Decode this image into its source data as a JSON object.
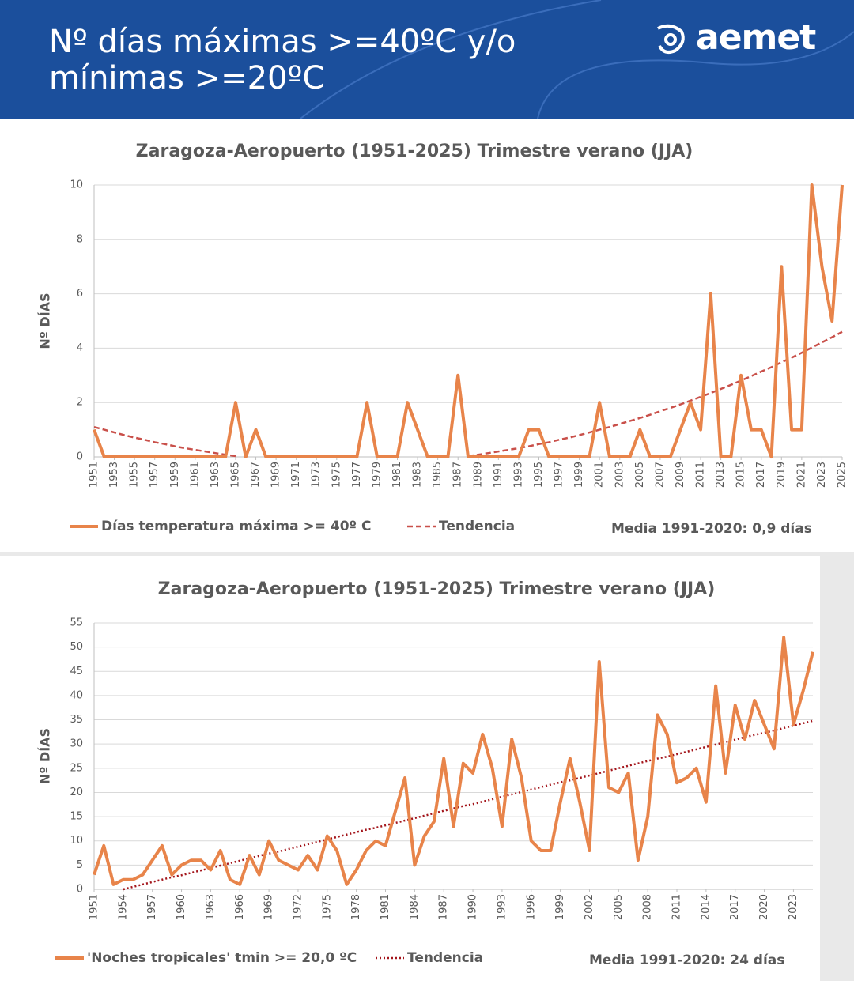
{
  "header": {
    "title": "Nº días máximas >=40ºC y/o mínimas >=20ºC",
    "logo": "aemet"
  },
  "chart_data": [
    {
      "type": "line",
      "title": "Zaragoza-Aeropuerto (1951-2025) Trimestre verano (JJA)",
      "y_label": "Nº DÍAS",
      "x": [
        1951,
        1952,
        1953,
        1954,
        1955,
        1956,
        1957,
        1958,
        1959,
        1960,
        1961,
        1962,
        1963,
        1964,
        1965,
        1966,
        1967,
        1968,
        1969,
        1970,
        1971,
        1972,
        1973,
        1974,
        1975,
        1976,
        1977,
        1978,
        1979,
        1980,
        1981,
        1982,
        1983,
        1984,
        1985,
        1986,
        1987,
        1988,
        1989,
        1990,
        1991,
        1992,
        1993,
        1994,
        1995,
        1996,
        1997,
        1998,
        1999,
        2000,
        2001,
        2002,
        2003,
        2004,
        2005,
        2006,
        2007,
        2008,
        2009,
        2010,
        2011,
        2012,
        2013,
        2014,
        2015,
        2016,
        2017,
        2018,
        2019,
        2020,
        2021,
        2022,
        2023,
        2024,
        2025
      ],
      "series": [
        {
          "name": "Días temperatura máxima >= 40º C",
          "color": "#e8844a",
          "style": "solid",
          "values": [
            1,
            0,
            0,
            0,
            0,
            0,
            0,
            0,
            0,
            0,
            0,
            0,
            0,
            0,
            2,
            0,
            1,
            0,
            0,
            0,
            0,
            0,
            0,
            0,
            0,
            0,
            0,
            2,
            0,
            0,
            0,
            2,
            1,
            0,
            0,
            0,
            3,
            0,
            0,
            0,
            0,
            0,
            0,
            1,
            1,
            0,
            0,
            0,
            0,
            0,
            2,
            0,
            0,
            0,
            1,
            0,
            0,
            0,
            1,
            2,
            1,
            6,
            0,
            0,
            3,
            1,
            1,
            0,
            7,
            1,
            1,
            10,
            7,
            5,
            10
          ]
        },
        {
          "name": "Tendencia",
          "color": "#c9504a",
          "style": "dashed",
          "values": [
            1.1,
            1.0,
            0.9,
            0.8,
            0.71,
            0.63,
            0.54,
            0.47,
            0.39,
            0.32,
            0.26,
            0.2,
            0.14,
            0.08,
            0.03,
            null,
            null,
            null,
            null,
            null,
            null,
            null,
            null,
            null,
            null,
            null,
            null,
            null,
            null,
            null,
            null,
            null,
            null,
            null,
            null,
            null,
            null,
            0.03,
            0.08,
            0.14,
            0.2,
            0.26,
            0.32,
            0.39,
            0.47,
            0.54,
            0.63,
            0.71,
            0.8,
            0.9,
            1.0,
            1.1,
            1.21,
            1.32,
            1.43,
            1.55,
            1.68,
            1.8,
            1.93,
            2.07,
            2.21,
            2.35,
            2.5,
            2.65,
            2.81,
            2.97,
            3.14,
            3.3,
            3.48,
            3.65,
            3.83,
            4.02,
            4.21,
            4.4,
            4.6
          ]
        }
      ],
      "xlim": [
        1951,
        2025
      ],
      "xticks": [
        1951,
        1953,
        1955,
        1957,
        1959,
        1961,
        1963,
        1965,
        1967,
        1969,
        1971,
        1973,
        1975,
        1977,
        1979,
        1981,
        1983,
        1985,
        1987,
        1989,
        1991,
        1993,
        1995,
        1997,
        1999,
        2001,
        2003,
        2005,
        2007,
        2009,
        2011,
        2013,
        2015,
        2017,
        2019,
        2021,
        2023,
        2025
      ],
      "ylim": [
        0,
        10
      ],
      "yticks": [
        0,
        2,
        4,
        6,
        8,
        10
      ],
      "grid": true,
      "legend": "bottom",
      "note": "Media 1991-2020: 0,9 días"
    },
    {
      "type": "line",
      "title": "Zaragoza-Aeropuerto (1951-2025) Trimestre verano (JJA)",
      "y_label": "Nº DÍAS",
      "x": [
        1951,
        1952,
        1953,
        1954,
        1955,
        1956,
        1957,
        1958,
        1959,
        1960,
        1961,
        1962,
        1963,
        1964,
        1965,
        1966,
        1967,
        1968,
        1969,
        1970,
        1971,
        1972,
        1973,
        1974,
        1975,
        1976,
        1977,
        1978,
        1979,
        1980,
        1981,
        1982,
        1983,
        1984,
        1985,
        1986,
        1987,
        1988,
        1989,
        1990,
        1991,
        1992,
        1993,
        1994,
        1995,
        1996,
        1997,
        1998,
        1999,
        2000,
        2001,
        2002,
        2003,
        2004,
        2005,
        2006,
        2007,
        2008,
        2009,
        2010,
        2011,
        2012,
        2013,
        2014,
        2015,
        2016,
        2017,
        2018,
        2019,
        2020,
        2021,
        2022,
        2023,
        2024,
        2025
      ],
      "series": [
        {
          "name": "'Noches tropicales' tmin >= 20,0 ºC",
          "color": "#e8844a",
          "style": "solid",
          "values": [
            3,
            9,
            1,
            2,
            2,
            3,
            6,
            9,
            3,
            5,
            6,
            6,
            4,
            8,
            2,
            1,
            7,
            3,
            10,
            6,
            5,
            4,
            7,
            4,
            11,
            8,
            1,
            4,
            8,
            10,
            9,
            16,
            23,
            5,
            11,
            14,
            27,
            13,
            26,
            24,
            32,
            25,
            13,
            31,
            23,
            10,
            8,
            8,
            18,
            27,
            18,
            8,
            47,
            21,
            20,
            24,
            6,
            15,
            36,
            32,
            22,
            23,
            25,
            18,
            42,
            24,
            38,
            31,
            39,
            34,
            29,
            52,
            34,
            41,
            49
          ]
        },
        {
          "name": "Tendencia",
          "color": "#a3151b",
          "style": "dotted",
          "values": [
            null,
            null,
            null,
            0,
            0.5,
            1.0,
            1.5,
            2.0,
            2.5,
            2.9,
            3.4,
            3.9,
            4.4,
            4.9,
            5.4,
            5.9,
            6.4,
            6.9,
            7.4,
            7.8,
            8.3,
            8.8,
            9.3,
            9.8,
            10.3,
            10.8,
            11.3,
            11.8,
            12.3,
            12.7,
            13.2,
            13.7,
            14.2,
            14.7,
            15.2,
            15.7,
            16.2,
            16.7,
            17.2,
            17.6,
            18.1,
            18.6,
            19.1,
            19.6,
            20.1,
            20.6,
            21.1,
            21.6,
            22.1,
            22.5,
            23.0,
            23.5,
            24.0,
            24.5,
            25.0,
            25.5,
            26.0,
            26.5,
            27.0,
            27.4,
            27.9,
            28.4,
            28.9,
            29.4,
            29.9,
            30.4,
            30.9,
            31.4,
            31.9,
            32.3,
            32.8,
            33.3,
            33.8,
            34.3,
            34.8
          ]
        }
      ],
      "xlim": [
        1951,
        2025
      ],
      "xticks": [
        1951,
        1954,
        1957,
        1960,
        1963,
        1966,
        1969,
        1972,
        1975,
        1978,
        1981,
        1984,
        1987,
        1990,
        1993,
        1996,
        1999,
        2002,
        2005,
        2008,
        2011,
        2014,
        2017,
        2020,
        2023
      ],
      "ylim": [
        0,
        55
      ],
      "yticks": [
        0,
        5,
        10,
        15,
        20,
        25,
        30,
        35,
        40,
        45,
        50,
        55
      ],
      "grid": true,
      "legend": "bottom",
      "note": "Media 1991-2020: 24 días"
    }
  ]
}
